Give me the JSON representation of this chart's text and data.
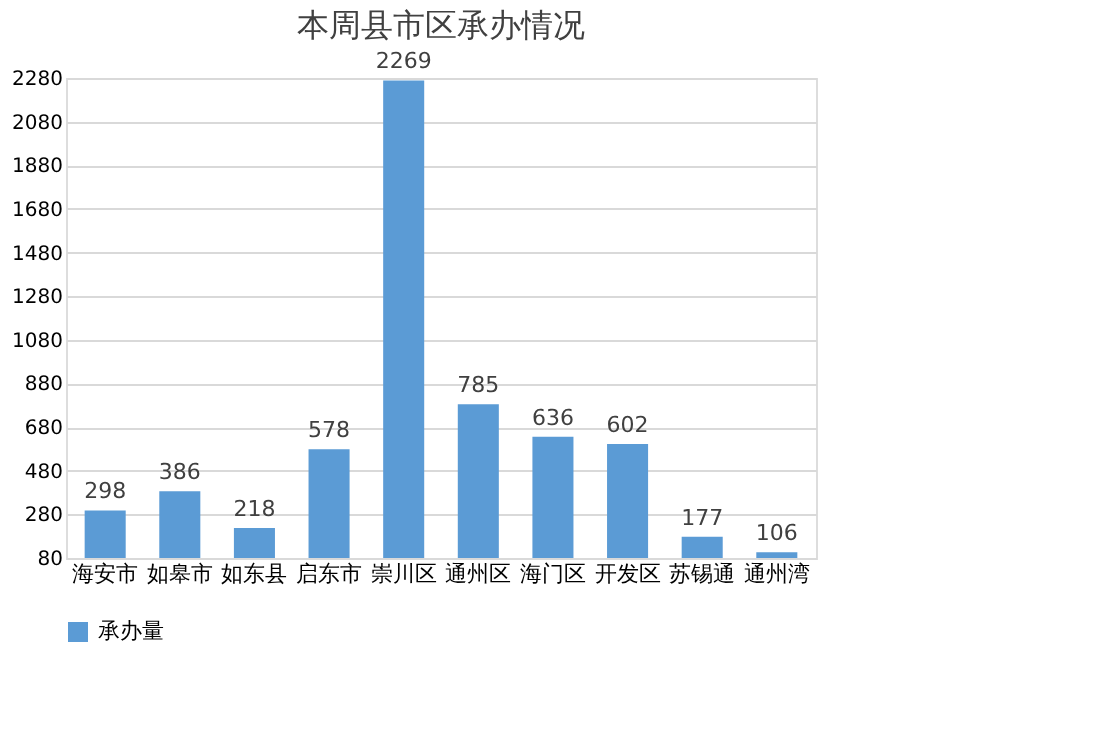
{
  "chart_data": {
    "type": "bar",
    "title": "本周县市区承办情况",
    "categories": [
      "海安市",
      "如皋市",
      "如东县",
      "启东市",
      "崇川区",
      "通州区",
      "海门区",
      "开发区",
      "苏锡通",
      "通州湾"
    ],
    "series": [
      {
        "name": "承办量",
        "color": "#5b9bd5",
        "values": [
          298,
          386,
          218,
          578,
          2269,
          785,
          636,
          602,
          177,
          106
        ]
      }
    ],
    "ylim": [
      80,
      2280
    ],
    "yticks": [
      80,
      280,
      480,
      680,
      880,
      1080,
      1280,
      1480,
      1680,
      1880,
      2080,
      2280
    ],
    "grid": "y",
    "legend": "bottom",
    "data_labels": true
  }
}
